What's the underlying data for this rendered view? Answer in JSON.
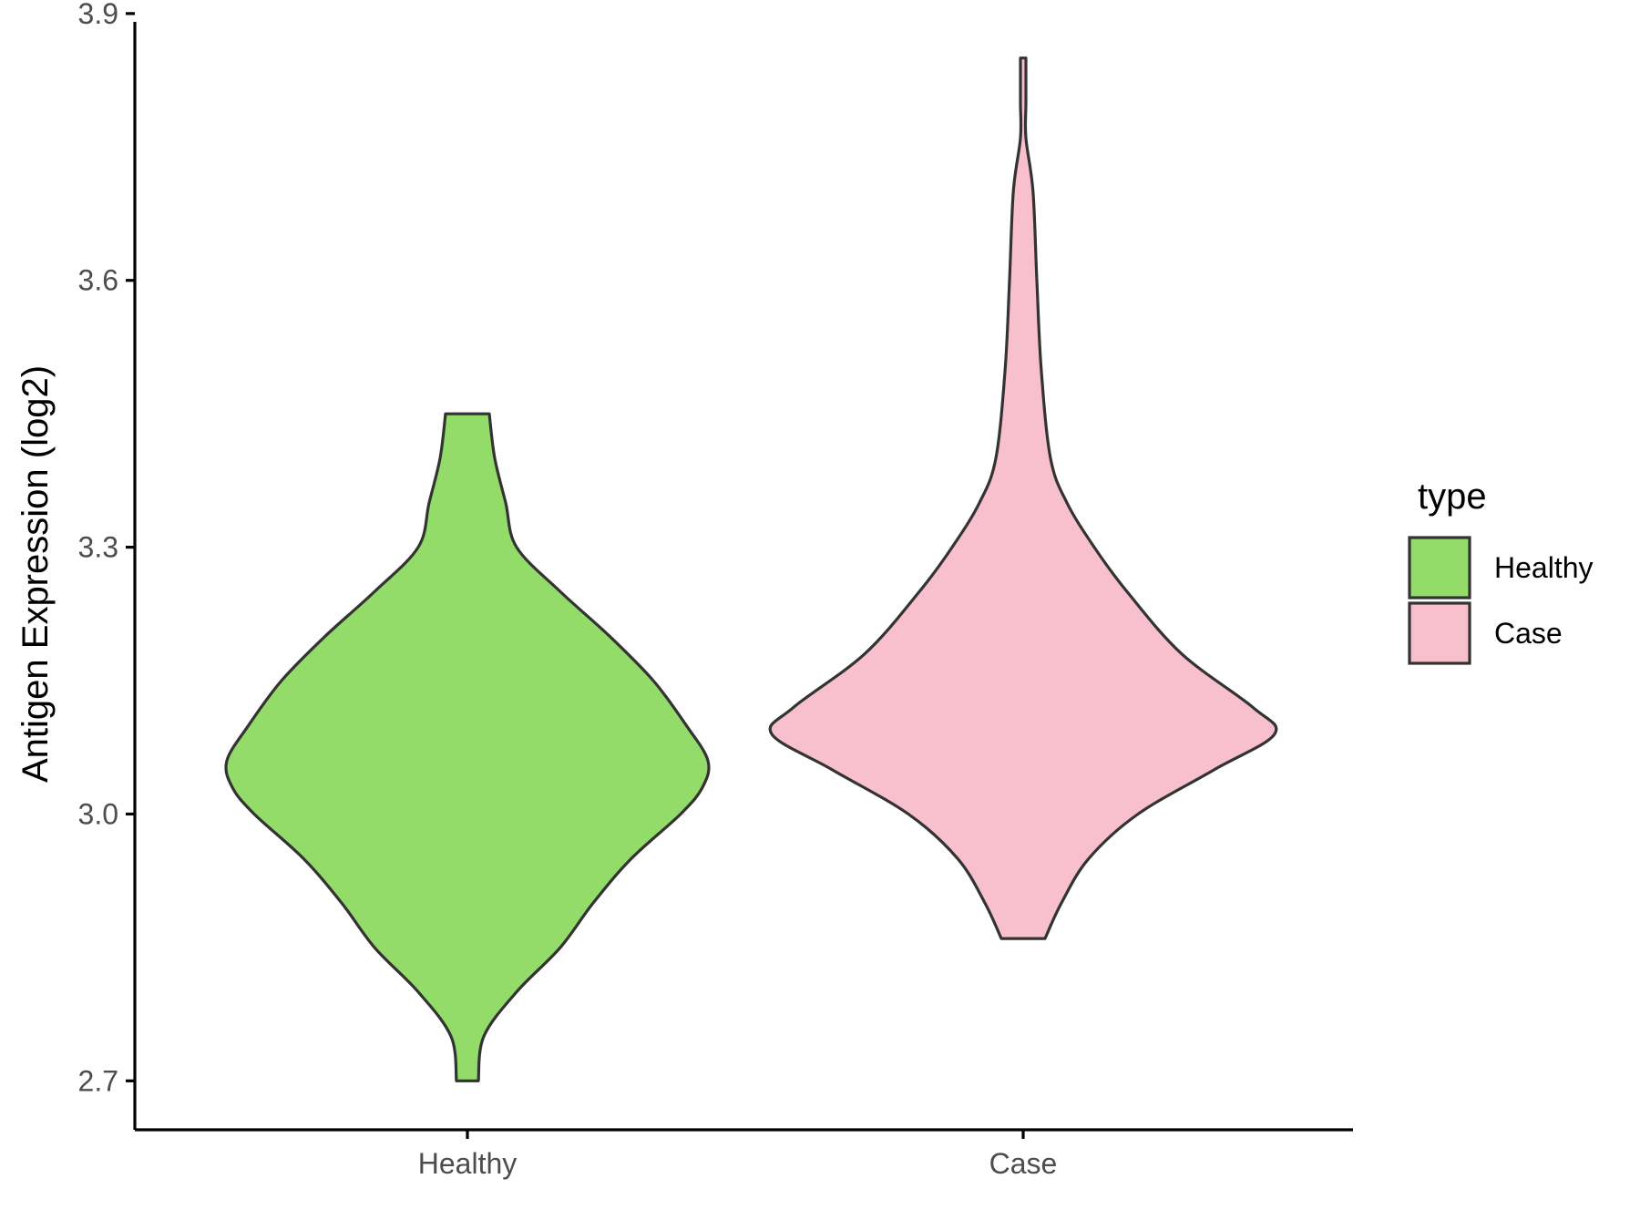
{
  "chart_data": {
    "type": "violin",
    "title": "",
    "xlabel": "",
    "ylabel": "Antigen Expression (log2)",
    "ylim": [
      2.645,
      3.905
    ],
    "yticks": [
      2.7,
      3.0,
      3.3,
      3.6,
      3.9
    ],
    "ytick_labels": [
      "2.7",
      "3.0",
      "3.3",
      "3.6",
      "3.9"
    ],
    "categories": [
      "Healthy",
      "Case"
    ],
    "legend": {
      "title": "type",
      "position": "right",
      "entries": [
        "Healthy",
        "Case"
      ]
    },
    "grid": false,
    "outline_color": "#333333",
    "axis_color": "#000000",
    "series": [
      {
        "category": "Healthy",
        "color": "#93dc6a",
        "min": 2.7,
        "max": 3.45,
        "profile": [
          [
            2.7,
            0.02
          ],
          [
            2.75,
            0.03
          ],
          [
            2.8,
            0.09
          ],
          [
            2.85,
            0.17
          ],
          [
            2.9,
            0.23
          ],
          [
            2.95,
            0.3
          ],
          [
            3.0,
            0.39
          ],
          [
            3.03,
            0.43
          ],
          [
            3.06,
            0.44
          ],
          [
            3.1,
            0.4
          ],
          [
            3.15,
            0.34
          ],
          [
            3.2,
            0.26
          ],
          [
            3.25,
            0.17
          ],
          [
            3.3,
            0.09
          ],
          [
            3.35,
            0.07
          ],
          [
            3.4,
            0.05
          ],
          [
            3.45,
            0.04
          ]
        ]
      },
      {
        "category": "Case",
        "color": "#f8c0cc",
        "min": 2.86,
        "max": 3.85,
        "profile": [
          [
            2.86,
            0.04
          ],
          [
            2.9,
            0.07
          ],
          [
            2.95,
            0.12
          ],
          [
            3.0,
            0.21
          ],
          [
            3.05,
            0.35
          ],
          [
            3.09,
            0.46
          ],
          [
            3.12,
            0.42
          ],
          [
            3.18,
            0.29
          ],
          [
            3.25,
            0.19
          ],
          [
            3.3,
            0.13
          ],
          [
            3.35,
            0.08
          ],
          [
            3.4,
            0.05
          ],
          [
            3.5,
            0.033
          ],
          [
            3.6,
            0.025
          ],
          [
            3.7,
            0.018
          ],
          [
            3.76,
            0.005
          ],
          [
            3.8,
            0.005
          ],
          [
            3.85,
            0.005
          ]
        ]
      }
    ]
  }
}
